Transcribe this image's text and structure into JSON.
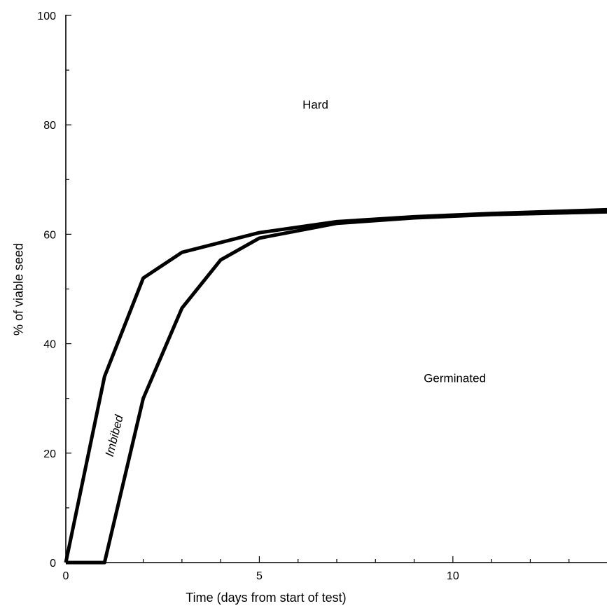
{
  "chart_data": {
    "type": "line",
    "title": "",
    "xlabel": "Time (days from start of test)",
    "ylabel": "% of viable seed",
    "xlim": [
      0,
      14
    ],
    "ylim": [
      0,
      100
    ],
    "x_ticks": [
      0,
      5,
      10
    ],
    "x_ticks_minor": [
      1,
      2,
      3,
      4,
      6,
      7,
      8,
      9,
      11,
      12,
      13
    ],
    "y_ticks": [
      0,
      20,
      40,
      60,
      80,
      100
    ],
    "y_ticks_minor": [
      10,
      30,
      50,
      70,
      90
    ],
    "grid": false,
    "series": [
      {
        "values": [
          [
            0,
            0
          ],
          [
            1,
            34
          ],
          [
            2,
            52
          ],
          [
            3,
            56.7
          ],
          [
            5,
            60.3
          ],
          [
            7,
            62.3
          ],
          [
            9,
            63.2
          ],
          [
            11,
            63.8
          ],
          [
            14,
            64.5
          ]
        ]
      },
      {
        "values": [
          [
            0,
            0
          ],
          [
            1,
            0
          ],
          [
            2,
            30
          ],
          [
            3,
            46.5
          ],
          [
            4,
            55.3
          ],
          [
            5,
            59.3
          ],
          [
            7,
            62
          ],
          [
            9,
            63
          ],
          [
            11,
            63.6
          ],
          [
            14,
            64.1
          ]
        ]
      }
    ],
    "annotations": [
      {
        "text": "Hard",
        "x": 6.45,
        "y": 83
      },
      {
        "text": "Germinated",
        "x": 10.05,
        "y": 33
      },
      {
        "text": "Imbibed",
        "x": 1.35,
        "y": 23,
        "rotate": -76,
        "italic": true
      }
    ]
  }
}
